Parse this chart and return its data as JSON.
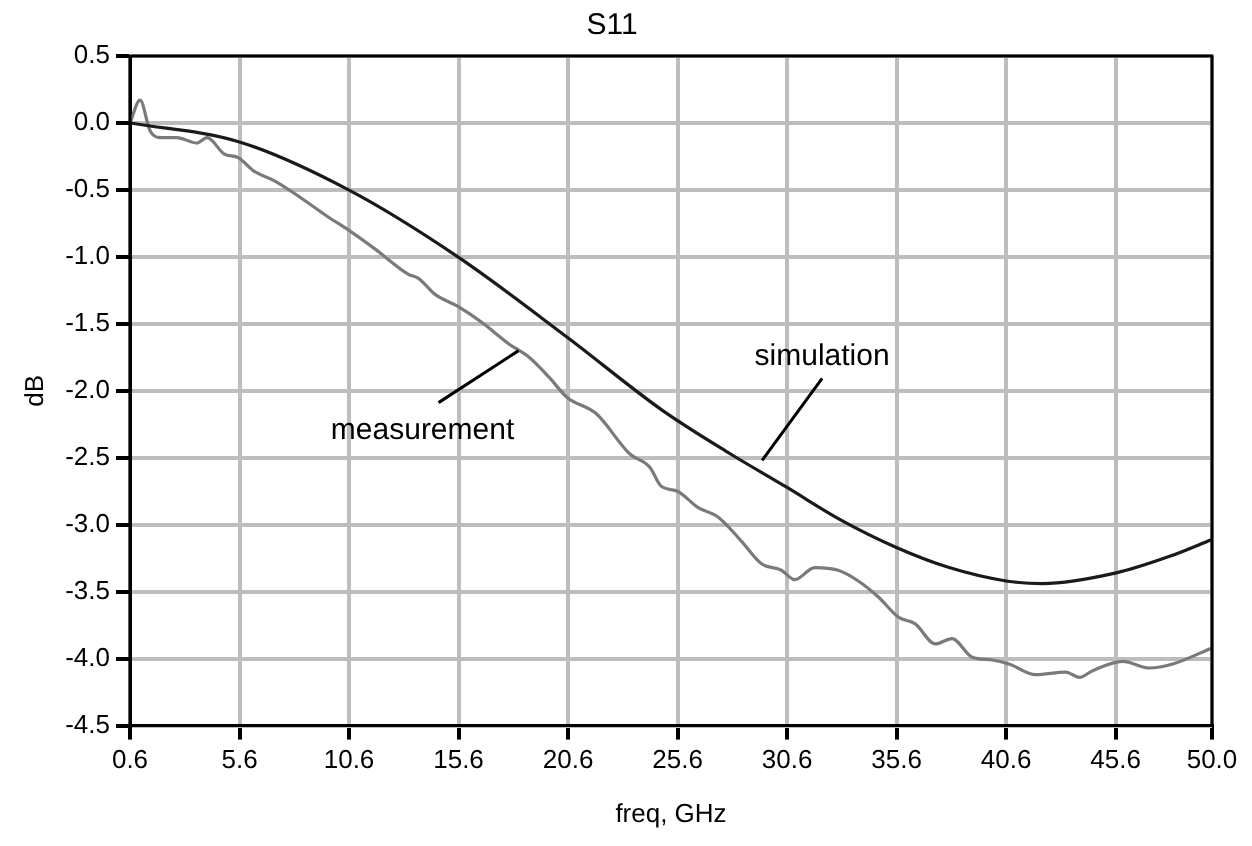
{
  "chart_data": {
    "type": "line",
    "title": "S11",
    "xlabel": "freq, GHz",
    "ylabel": "dB",
    "xlim": [
      0.6,
      50.0
    ],
    "xticks": [
      0.6,
      5.6,
      10.6,
      15.6,
      20.6,
      25.6,
      30.6,
      35.6,
      40.6,
      45.6,
      {
        "value": 50,
        "label": "50.0"
      }
    ],
    "ylim": [
      -4.5,
      0.5
    ],
    "yticks": [
      0.5,
      {
        "value": 0,
        "label": "0.0"
      },
      -0.5,
      {
        "value": -1,
        "label": "-1.0"
      },
      -1.5,
      {
        "value": -2,
        "label": "-2.0"
      },
      -2.5,
      {
        "value": -3,
        "label": "-3.0"
      },
      -3.5,
      {
        "value": -4,
        "label": "-4.0"
      },
      -4.5
    ],
    "grid": true,
    "marker": "none",
    "line_style": "solid",
    "series": [
      {
        "color": "#1a1a1a",
        "x": [
          0.6,
          5.56,
          10.58,
          15.57,
          20.56,
          24.94,
          28.0,
          30.58,
          33.0,
          35.59,
          38.0,
          40.6,
          42.25,
          45.62,
          48.0,
          50.0
        ],
        "values": [
          0,
          -0.14,
          -0.5,
          -1.0,
          -1.6,
          -2.15,
          -2.47,
          -2.72,
          -2.96,
          -3.17,
          -3.32,
          -3.42,
          -3.44,
          -3.36,
          -3.24,
          -3.11
        ]
      },
      {
        "color": "#7a7a7a",
        "x": [
          0.6,
          1.06,
          1.52,
          1.98,
          2.74,
          3.66,
          4.12,
          4.89,
          5.56,
          6.26,
          7.18,
          8.41,
          9.63,
          10.58,
          11.78,
          13.31,
          13.77,
          14.53,
          15.57,
          16.67,
          17.9,
          18.82,
          19.74,
          20.56,
          21.88,
          23.41,
          24.33,
          24.84,
          25.6,
          26.52,
          27.43,
          28.5,
          29.42,
          30.34,
          30.95,
          31.86,
          32.93,
          33.85,
          34.77,
          35.68,
          36.45,
          37.37,
          38.13,
          39.05,
          39.96,
          40.73,
          41.95,
          43.32,
          43.94,
          44.55,
          45.92,
          47.15,
          48.21,
          50.0
        ],
        "values": [
          0,
          0.17,
          -0.06,
          -0.11,
          -0.11,
          -0.15,
          -0.11,
          -0.23,
          -0.26,
          -0.36,
          -0.43,
          -0.56,
          -0.7,
          -0.8,
          -0.94,
          -1.13,
          -1.16,
          -1.28,
          -1.37,
          -1.49,
          -1.65,
          -1.75,
          -1.9,
          -2.05,
          -2.17,
          -2.47,
          -2.57,
          -2.71,
          -2.75,
          -2.87,
          -2.94,
          -3.12,
          -3.29,
          -3.34,
          -3.41,
          -3.32,
          -3.34,
          -3.42,
          -3.54,
          -3.69,
          -3.74,
          -3.89,
          -3.85,
          -3.99,
          -4.01,
          -4.04,
          -4.12,
          -4.1,
          -4.14,
          -4.09,
          -4.02,
          -4.07,
          -4.04,
          -3.92
        ]
      }
    ],
    "annotations": [
      {
        "text": "simulation",
        "x": 29.46,
        "y": -2.52
      },
      {
        "text": "measurement",
        "x": 18.34,
        "y": -1.7
      }
    ]
  }
}
